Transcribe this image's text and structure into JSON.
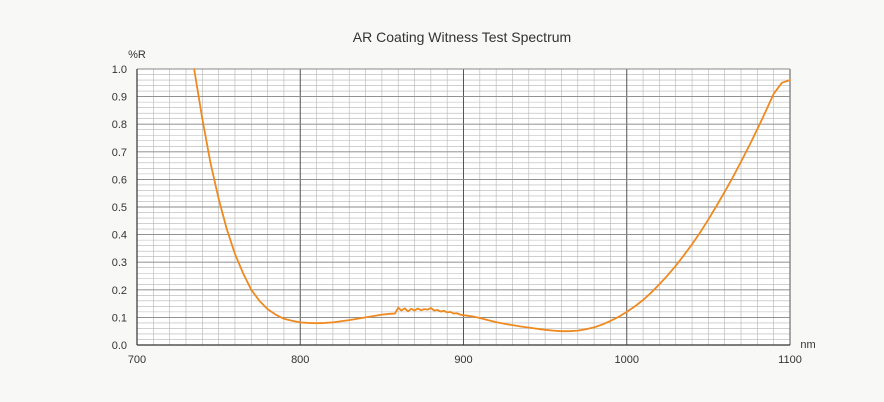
{
  "chart_data": {
    "type": "line",
    "title": "AR Coating Witness Test Spectrum",
    "xlabel": "nm",
    "ylabel": "%R",
    "xlim": [
      700,
      1100
    ],
    "ylim": [
      0.0,
      1.0
    ],
    "x_ticks": [
      "700",
      "800",
      "900",
      "1000",
      "1100"
    ],
    "y_ticks": [
      "0.0",
      "0.1",
      "0.2",
      "0.3",
      "0.4",
      "0.5",
      "0.6",
      "0.7",
      "0.8",
      "0.9",
      "1.0"
    ],
    "grid": true,
    "legend": "none",
    "series": [
      {
        "color": "#ee8a1f",
        "x": [
          735,
          740,
          745,
          750,
          755,
          760,
          765,
          770,
          775,
          780,
          785,
          790,
          795,
          800,
          805,
          810,
          815,
          820,
          825,
          830,
          835,
          840,
          845,
          850,
          855,
          858,
          860,
          862,
          864,
          866,
          868,
          870,
          872,
          874,
          876,
          878,
          880,
          882,
          884,
          886,
          888,
          890,
          892,
          894,
          896,
          898,
          900,
          905,
          910,
          915,
          920,
          925,
          930,
          935,
          940,
          945,
          950,
          955,
          960,
          965,
          970,
          975,
          980,
          985,
          990,
          995,
          1000,
          1005,
          1010,
          1015,
          1020,
          1025,
          1030,
          1035,
          1040,
          1045,
          1050,
          1055,
          1060,
          1065,
          1070,
          1075,
          1080,
          1085,
          1090,
          1095,
          1100
        ],
        "y": [
          1.0,
          0.82,
          0.66,
          0.53,
          0.42,
          0.33,
          0.26,
          0.2,
          0.16,
          0.13,
          0.11,
          0.095,
          0.088,
          0.082,
          0.08,
          0.079,
          0.08,
          0.082,
          0.086,
          0.09,
          0.095,
          0.1,
          0.105,
          0.11,
          0.113,
          0.114,
          0.135,
          0.125,
          0.133,
          0.122,
          0.131,
          0.125,
          0.132,
          0.126,
          0.13,
          0.128,
          0.134,
          0.125,
          0.127,
          0.121,
          0.124,
          0.118,
          0.12,
          0.114,
          0.115,
          0.11,
          0.108,
          0.104,
          0.098,
          0.09,
          0.083,
          0.077,
          0.072,
          0.067,
          0.063,
          0.059,
          0.055,
          0.052,
          0.05,
          0.05,
          0.052,
          0.057,
          0.064,
          0.074,
          0.087,
          0.102,
          0.12,
          0.14,
          0.163,
          0.19,
          0.22,
          0.252,
          0.287,
          0.325,
          0.365,
          0.408,
          0.455,
          0.504,
          0.555,
          0.608,
          0.664,
          0.722,
          0.782,
          0.845,
          0.91,
          0.95,
          0.96
        ]
      }
    ]
  }
}
